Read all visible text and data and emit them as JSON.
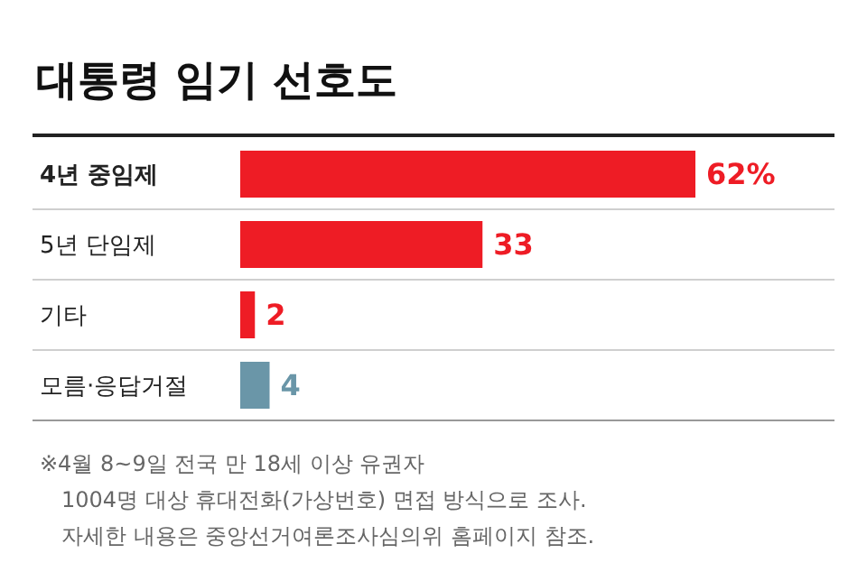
{
  "chart_data": {
    "type": "bar",
    "orientation": "horizontal",
    "title": "대통령 임기 선호도",
    "categories": [
      "4년 중임제",
      "5년 단임제",
      "기타",
      "모름·응답거절"
    ],
    "values": [
      62,
      33,
      2,
      4
    ],
    "colors": [
      "#ee1c25",
      "#ee1c25",
      "#ee1c25",
      "#6a96a8"
    ],
    "value_labels": [
      "62%",
      "33",
      "2",
      "4"
    ],
    "annotations": [
      "※4월 8~9일 전국 만 18세 이상 유권자",
      "1004명 대상 휴대전화(가상번호) 면접 방식으로 조사.",
      "자세한 내용은 중앙선거여론조사심의위 홈페이지 참조."
    ]
  }
}
